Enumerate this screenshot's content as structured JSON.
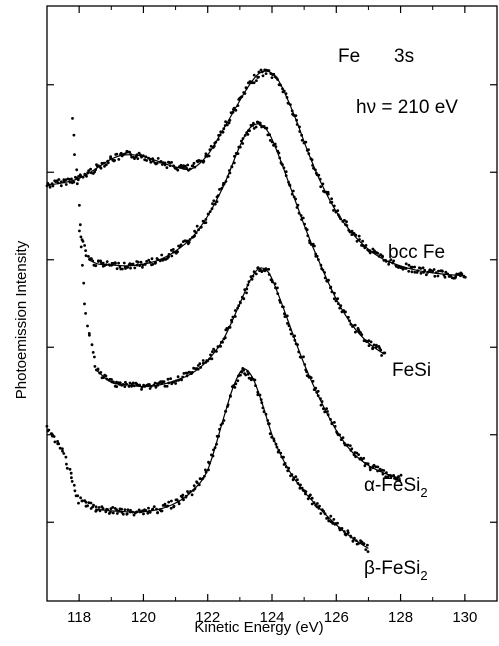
{
  "chart_data": {
    "type": "line",
    "title": "",
    "xlabel": "Kinetic Energy (eV)",
    "ylabel": "Photoemission Intensity",
    "xlim": [
      117,
      131
    ],
    "xticks": [
      118,
      120,
      122,
      124,
      126,
      128,
      130
    ],
    "yticks": [
      0,
      1,
      2,
      3,
      4,
      5
    ],
    "ylim": [
      -0.9,
      5.9
    ],
    "grid": false,
    "y_tick_labels": false,
    "annotations": {
      "element": "Fe",
      "level": "3s",
      "energy": "hν = 210 eV"
    },
    "series": [
      {
        "name": "bcc Fe",
        "label_main": "bcc Fe",
        "label_sub": "",
        "x": [
          117.0,
          118.0,
          119.0,
          119.5,
          120.0,
          120.5,
          121.0,
          121.5,
          122.0,
          122.5,
          123.0,
          123.3,
          123.6,
          123.9,
          124.2,
          124.5,
          124.8,
          125.1,
          125.5,
          126.0,
          126.5,
          127.0,
          127.5,
          128.0,
          128.5,
          129.0,
          129.5,
          130.0
        ],
        "y": [
          3.85,
          3.93,
          4.15,
          4.2,
          4.18,
          4.12,
          4.06,
          4.04,
          4.2,
          4.5,
          4.82,
          5.0,
          5.13,
          5.15,
          5.05,
          4.82,
          4.55,
          4.25,
          3.9,
          3.55,
          3.3,
          3.12,
          3.0,
          2.93,
          2.88,
          2.85,
          2.83,
          2.82
        ]
      },
      {
        "name": "FeSi",
        "label_main": "FeSi",
        "label_sub": "",
        "x": [
          118.0,
          118.3,
          118.6,
          119.0,
          119.5,
          120.0,
          120.5,
          121.0,
          121.5,
          122.0,
          122.5,
          123.0,
          123.3,
          123.6,
          123.9,
          124.2,
          124.5,
          124.8,
          125.1,
          125.5,
          126.0,
          126.5,
          127.0,
          127.5
        ],
        "y": [
          3.3,
          3.0,
          2.95,
          2.94,
          2.93,
          2.95,
          3.0,
          3.1,
          3.25,
          3.5,
          3.85,
          4.3,
          4.5,
          4.55,
          4.45,
          4.2,
          3.9,
          3.6,
          3.3,
          2.95,
          2.55,
          2.25,
          2.05,
          1.92
        ]
      },
      {
        "name": "α-FeSi2",
        "label_main": "α-FeSi",
        "label_sub": "2",
        "x": [
          117.8,
          118.0,
          118.2,
          118.5,
          119.0,
          119.5,
          120.0,
          120.5,
          121.0,
          121.5,
          122.0,
          122.5,
          123.0,
          123.3,
          123.6,
          123.9,
          124.2,
          124.5,
          124.8,
          125.1,
          125.5,
          126.0,
          126.5,
          127.0,
          127.5,
          128.0
        ],
        "y": [
          4.6,
          3.6,
          2.4,
          1.75,
          1.6,
          1.57,
          1.55,
          1.57,
          1.62,
          1.7,
          1.85,
          2.1,
          2.5,
          2.75,
          2.9,
          2.85,
          2.6,
          2.3,
          2.0,
          1.72,
          1.4,
          1.05,
          0.8,
          0.65,
          0.56,
          0.5
        ]
      },
      {
        "name": "β-FeSi2",
        "label_main": "β-FeSi",
        "label_sub": "2",
        "x": [
          117.0,
          117.5,
          118.0,
          118.5,
          119.0,
          119.5,
          120.0,
          120.5,
          121.0,
          121.5,
          122.0,
          122.5,
          122.8,
          123.1,
          123.4,
          123.7,
          124.0,
          124.3,
          124.6,
          125.0,
          125.5,
          126.0,
          126.5,
          127.0
        ],
        "y": [
          1.1,
          0.8,
          0.25,
          0.15,
          0.13,
          0.12,
          0.12,
          0.15,
          0.22,
          0.35,
          0.6,
          1.2,
          1.55,
          1.75,
          1.65,
          1.35,
          1.0,
          0.75,
          0.55,
          0.35,
          0.15,
          -0.03,
          -0.18,
          -0.3
        ]
      }
    ]
  }
}
